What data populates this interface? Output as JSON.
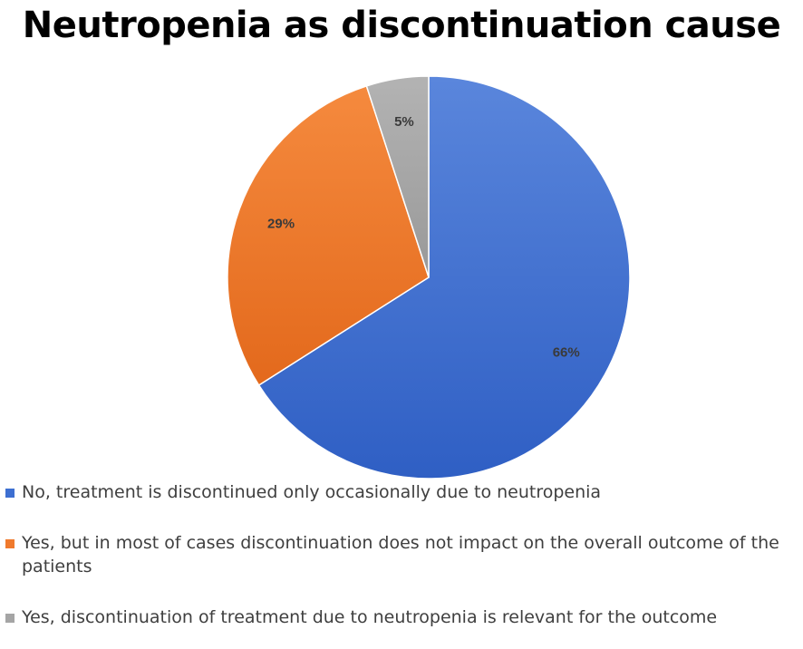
{
  "chart_data": {
    "type": "pie",
    "title": "Neutropenia as discontinuation cause",
    "slices": [
      {
        "label": "No, treatment is discontinued only occasionally due to neutropenia",
        "value": 66,
        "display": "66%",
        "color": "#3d6fd1"
      },
      {
        "label": "Yes, but in most of cases discontinuation does not impact on the overall outcome of the patients",
        "value": 29,
        "display": "29%",
        "color": "#f07a2d"
      },
      {
        "label": "Yes, discontinuation of treatment due to neutropenia is relevant for the outcome",
        "value": 5,
        "display": "5%",
        "color": "#a5a5a5"
      }
    ],
    "legend_position": "bottom"
  }
}
